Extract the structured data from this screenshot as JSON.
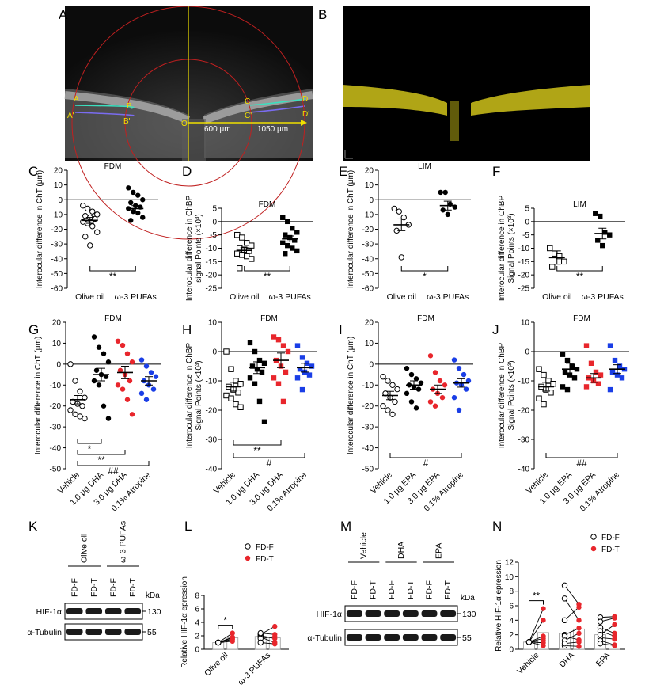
{
  "panel_labels": [
    "A",
    "B",
    "C",
    "D",
    "E",
    "F",
    "G",
    "H",
    "I",
    "J",
    "K",
    "L",
    "M",
    "N"
  ],
  "oct_a": {
    "labels": [
      "A",
      "A'",
      "B",
      "B'",
      "O",
      "C",
      "C'",
      "D",
      "D'"
    ],
    "dist1": "600 μm",
    "dist2": "1050 μm"
  },
  "blots": {
    "K": {
      "groups": [
        "Olive oil",
        "ω-3 PUFAs"
      ],
      "lanes": [
        "FD-F",
        "FD-T",
        "FD-F",
        "FD-T"
      ],
      "kda": "kDa",
      "rows": [
        {
          "name": "HIF-1α",
          "mw": "130"
        },
        {
          "name": "α-Tubulin",
          "mw": "55"
        }
      ]
    },
    "M": {
      "groups": [
        "Vehicle",
        "DHA",
        "EPA"
      ],
      "lanes": [
        "FD-F",
        "FD-T",
        "FD-F",
        "FD-T",
        "FD-F",
        "FD-T"
      ],
      "kda": "kDa",
      "rows": [
        {
          "name": "HIF-1α",
          "mw": "130"
        },
        {
          "name": "α-Tubulin",
          "mw": "55"
        }
      ]
    }
  },
  "chart_data": [
    {
      "id": "C",
      "type": "scatter",
      "title": "FDM",
      "ylabel": "Interocular difference in ChT (μm)",
      "ylim": [
        -60,
        20
      ],
      "yticks": [
        20,
        10,
        0,
        -10,
        -20,
        -30,
        -40,
        -50,
        -60
      ],
      "categories": [
        "Olive oil",
        "ω-3 PUFAs"
      ],
      "series": [
        {
          "name": "Olive oil",
          "marker": "open-circle",
          "color": "#000000",
          "mean": -14,
          "sem": 2,
          "values": [
            -4,
            -6,
            -8,
            -10,
            -11,
            -12,
            -13,
            -15,
            -16,
            -18,
            -22,
            -25,
            -31
          ]
        },
        {
          "name": "ω-3 PUFAs",
          "marker": "filled-circle",
          "color": "#000000",
          "mean": -6,
          "sem": 2,
          "values": [
            8,
            5,
            3,
            0,
            -2,
            -4,
            -5,
            -6,
            -8,
            -9,
            -12,
            -14
          ]
        }
      ],
      "brackets": [
        {
          "from": 0,
          "to": 1,
          "label": "**"
        }
      ]
    },
    {
      "id": "D",
      "type": "scatter",
      "title": "FDM",
      "ylabel": "Interocular difference in ChBP signal Points (×10³)",
      "ylim": [
        -25,
        5
      ],
      "yticks": [
        5,
        0,
        -5,
        -10,
        -15,
        -20,
        -25
      ],
      "categories": [
        "Olive oil",
        "ω-3 PUFAs"
      ],
      "series": [
        {
          "name": "Olive oil",
          "marker": "open-square",
          "color": "#000000",
          "mean": -10.8,
          "sem": 1,
          "values": [
            -5,
            -6,
            -8,
            -9,
            -10,
            -10.5,
            -11,
            -12,
            -12.5,
            -13,
            -14,
            -17.5
          ]
        },
        {
          "name": "ω-3 PUFAs",
          "marker": "filled-square",
          "color": "#000000",
          "mean": -6.5,
          "sem": 1.1,
          "values": [
            1.5,
            0,
            -2.5,
            -4,
            -5,
            -6,
            -7,
            -8,
            -9,
            -10,
            -11,
            -12
          ]
        }
      ],
      "brackets": [
        {
          "from": 0,
          "to": 1,
          "label": "**"
        }
      ]
    },
    {
      "id": "E",
      "type": "scatter",
      "title": "LIM",
      "ylabel": "Interocular difference in ChT (μm)",
      "ylim": [
        -60,
        20
      ],
      "yticks": [
        20,
        10,
        0,
        -10,
        -20,
        -30,
        -40,
        -50,
        -60
      ],
      "categories": [
        "Olive oil",
        "ω-3 PUFAs"
      ],
      "series": [
        {
          "name": "Olive oil",
          "marker": "open-circle",
          "color": "#000000",
          "mean": -17,
          "sem": 4,
          "values": [
            -6,
            -8,
            -12,
            -17,
            -21,
            -39
          ]
        },
        {
          "name": "ω-3 PUFAs",
          "marker": "filled-circle",
          "color": "#000000",
          "mean": -4,
          "sem": 3,
          "values": [
            5,
            5,
            -3,
            -5,
            -7,
            -10
          ]
        }
      ],
      "brackets": [
        {
          "from": 0,
          "to": 1,
          "label": "*"
        }
      ]
    },
    {
      "id": "F",
      "type": "scatter",
      "title": "LIM",
      "ylabel": "Interocular difference in ChBP Signal Points (×10³)",
      "ylim": [
        -25,
        5
      ],
      "yticks": [
        5,
        0,
        -5,
        -10,
        -15,
        -20,
        -25
      ],
      "categories": [
        "Olive oil",
        "ω-3 PUFAs"
      ],
      "series": [
        {
          "name": "Olive oil",
          "marker": "open-square",
          "color": "#000000",
          "mean": -13.5,
          "sem": 2.5,
          "values": [
            -10,
            -12,
            -13,
            -15,
            -17
          ]
        },
        {
          "name": "ω-3 PUFAs",
          "marker": "filled-square",
          "color": "#000000",
          "mean": -4.5,
          "sem": 2,
          "values": [
            3,
            2,
            -4,
            -5,
            -7,
            -9
          ]
        }
      ],
      "brackets": [
        {
          "from": 0,
          "to": 1,
          "label": "**"
        }
      ]
    },
    {
      "id": "G",
      "type": "scatter",
      "title": "FDM",
      "ylabel": "Interocular difference in ChT (μm)",
      "ylim": [
        -50,
        20
      ],
      "yticks": [
        20,
        10,
        0,
        -10,
        -20,
        -30,
        -40,
        -50
      ],
      "categories": [
        "Vehicle",
        "1.0 μg DHA",
        "3.0 μg DHA",
        "0.1% Atropine"
      ],
      "series": [
        {
          "name": "Vehicle",
          "marker": "open-circle",
          "color": "#000000",
          "mean": -17,
          "sem": 2,
          "values": [
            0,
            -8,
            -13,
            -16,
            -18,
            -19,
            -20,
            -22,
            -24,
            -25,
            -26
          ]
        },
        {
          "name": "1.0 μg DHA",
          "marker": "filled-circle",
          "color": "#000000",
          "mean": -5,
          "sem": 3,
          "values": [
            13,
            8,
            5,
            1,
            -3,
            -5,
            -6,
            -8,
            -10,
            -20,
            -26
          ]
        },
        {
          "name": "3.0 μg DHA",
          "marker": "filled-circle",
          "color": "#e8262c",
          "mean": -4,
          "sem": 3,
          "values": [
            11,
            9,
            5,
            1,
            -3,
            -5,
            -8,
            -10,
            -12,
            -17,
            -24
          ]
        },
        {
          "name": "0.1% Atropine",
          "marker": "filled-circle",
          "color": "#1a3ee6",
          "mean": -8,
          "sem": 2,
          "values": [
            2,
            -1,
            -4,
            -6,
            -8,
            -10,
            -12,
            -14,
            -17
          ]
        }
      ],
      "brackets": [
        {
          "from": 0,
          "to": 1,
          "label": "*"
        },
        {
          "from": 0,
          "to": 2,
          "label": "**"
        },
        {
          "from": 0,
          "to": 3,
          "label": "##"
        }
      ]
    },
    {
      "id": "H",
      "type": "scatter",
      "title": "FDM",
      "ylabel": "Interocular difference in ChBP Signal Points (×10³)",
      "ylim": [
        -40,
        10
      ],
      "yticks": [
        10,
        0,
        -10,
        -20,
        -30,
        -40
      ],
      "categories": [
        "Vehicle",
        "1.0 μg DHA",
        "3.0 μg DHA",
        "0.1% Atropine"
      ],
      "series": [
        {
          "name": "Vehicle",
          "marker": "open-square",
          "color": "#000000",
          "mean": -12,
          "sem": 1.5,
          "values": [
            0,
            -6,
            -10,
            -11,
            -12,
            -13,
            -14,
            -15,
            -16,
            -18,
            -19
          ]
        },
        {
          "name": "1.0 μg DHA",
          "marker": "filled-square",
          "color": "#000000",
          "mean": -5.5,
          "sem": 2,
          "values": [
            3,
            0,
            -3,
            -4,
            -5,
            -6,
            -7,
            -9,
            -11,
            -17,
            -24
          ]
        },
        {
          "name": "3.0 μg DHA",
          "marker": "filled-square",
          "color": "#e8262c",
          "mean": -3,
          "sem": 2.5,
          "values": [
            5,
            4,
            2,
            0,
            -3,
            -5,
            -7,
            -9,
            -11,
            -17
          ]
        },
        {
          "name": "0.1% Atropine",
          "marker": "filled-square",
          "color": "#1a3ee6",
          "mean": -5.5,
          "sem": 1.5,
          "values": [
            2,
            -2,
            -4,
            -5,
            -6,
            -7,
            -8,
            -9,
            -13
          ]
        }
      ],
      "brackets": [
        {
          "from": 0,
          "to": 2,
          "label": "**"
        },
        {
          "from": 0,
          "to": 3,
          "label": "#"
        }
      ]
    },
    {
      "id": "I",
      "type": "scatter",
      "title": "FDM",
      "ylabel": "Interocular difference in ChT (μm)",
      "ylim": [
        -50,
        20
      ],
      "yticks": [
        20,
        10,
        0,
        -10,
        -20,
        -30,
        -40,
        -50
      ],
      "categories": [
        "Vehicle",
        "1.0 μg EPA",
        "3.0 μg EPA",
        "0.1% Atropine"
      ],
      "series": [
        {
          "name": "Vehicle",
          "marker": "open-circle",
          "color": "#000000",
          "mean": -15,
          "sem": 2,
          "values": [
            -6,
            -8,
            -10,
            -12,
            -14,
            -16,
            -18,
            -20,
            -22,
            -24
          ]
        },
        {
          "name": "1.0 μg EPA",
          "marker": "filled-circle",
          "color": "#000000",
          "mean": -10,
          "sem": 2,
          "values": [
            -2,
            -5,
            -7,
            -9,
            -10,
            -11,
            -12,
            -14,
            -18,
            -21
          ]
        },
        {
          "name": "3.0 μg EPA",
          "marker": "filled-circle",
          "color": "#e8262c",
          "mean": -12,
          "sem": 2,
          "values": [
            4,
            -4,
            -8,
            -10,
            -12,
            -14,
            -16,
            -18,
            -20
          ]
        },
        {
          "name": "0.1% Atropine",
          "marker": "filled-circle",
          "color": "#1a3ee6",
          "mean": -9,
          "sem": 2,
          "values": [
            2,
            -2,
            -5,
            -8,
            -9,
            -10,
            -12,
            -16,
            -22
          ]
        }
      ],
      "brackets": [
        {
          "from": 0,
          "to": 3,
          "label": "#"
        }
      ]
    },
    {
      "id": "J",
      "type": "scatter",
      "title": "FDM",
      "ylabel": "Interocular difference in ChBP Signal Points (×10³)",
      "ylim": [
        -40,
        10
      ],
      "yticks": [
        10,
        0,
        -10,
        -20,
        -30,
        -40
      ],
      "categories": [
        "Vehicle",
        "1.0 μg EPA",
        "3.0 μg EPA",
        "0.1% Atropine"
      ],
      "series": [
        {
          "name": "Vehicle",
          "marker": "open-square",
          "color": "#000000",
          "mean": -12,
          "sem": 1.5,
          "values": [
            -6,
            -8,
            -10,
            -11,
            -12,
            -13,
            -14,
            -16,
            -18
          ]
        },
        {
          "name": "1.0 μg EPA",
          "marker": "filled-square",
          "color": "#000000",
          "mean": -6,
          "sem": 2,
          "values": [
            -1,
            -3,
            -5,
            -6,
            -7,
            -8,
            -9,
            -12,
            -13
          ]
        },
        {
          "name": "3.0 μg EPA",
          "marker": "filled-square",
          "color": "#e8262c",
          "mean": -9,
          "sem": 1.5,
          "values": [
            2,
            -4,
            -7,
            -8,
            -9,
            -10,
            -11,
            -12
          ]
        },
        {
          "name": "0.1% Atropine",
          "marker": "filled-square",
          "color": "#1a3ee6",
          "mean": -6,
          "sem": 1.5,
          "values": [
            2,
            -3,
            -5,
            -6,
            -7,
            -8,
            -9,
            -13
          ]
        }
      ],
      "brackets": [
        {
          "from": 0,
          "to": 3,
          "label": "##"
        }
      ]
    },
    {
      "id": "L",
      "type": "paired",
      "ylabel": "Relative HIF-1α epression",
      "ylim": [
        0,
        8
      ],
      "yticks": [
        0,
        2,
        4,
        6,
        8
      ],
      "categories": [
        "Olive oil",
        "ω-3 PUFAs"
      ],
      "legend": [
        {
          "label": "FD-F",
          "marker": "open-circle",
          "color": "#000000"
        },
        {
          "label": "FD-T",
          "marker": "filled-circle",
          "color": "#e8262c"
        }
      ],
      "groups": [
        {
          "name": "Olive oil",
          "bar_f": 1,
          "bar_t": 1.7,
          "pairs": [
            [
              1,
              1.5
            ],
            [
              1,
              1.8
            ],
            [
              1,
              2.4
            ],
            [
              1,
              1.2
            ],
            [
              1,
              1.7
            ]
          ]
        },
        {
          "name": "ω-3 PUFAs",
          "bar_f": 1.9,
          "bar_t": 1.7,
          "pairs": [
            [
              2.2,
              3.4
            ],
            [
              2.0,
              1.6
            ],
            [
              1.8,
              1.0
            ],
            [
              1.6,
              1.9
            ],
            [
              1.0,
              0.8
            ],
            [
              2.4,
              2.2
            ]
          ]
        }
      ],
      "brackets": [
        {
          "group": 0,
          "label": "*"
        }
      ]
    },
    {
      "id": "N",
      "type": "paired",
      "ylabel": "Relative HIF-1α epression",
      "ylim": [
        0,
        12
      ],
      "yticks": [
        0,
        2,
        4,
        6,
        8,
        10,
        12
      ],
      "categories": [
        "Vehicle",
        "DHA",
        "EPA"
      ],
      "legend": [
        {
          "label": "FD-F",
          "marker": "open-circle",
          "color": "#000000"
        },
        {
          "label": "FD-T",
          "marker": "filled-circle",
          "color": "#e8262c"
        }
      ],
      "groups": [
        {
          "name": "Vehicle",
          "bar_f": 1,
          "bar_t": 2.3,
          "pairs": [
            [
              1,
              5.6
            ],
            [
              1,
              4.0
            ],
            [
              1,
              1.5
            ],
            [
              1,
              1.2
            ],
            [
              1,
              0.5
            ],
            [
              1,
              0.9
            ],
            [
              1,
              1.8
            ]
          ]
        },
        {
          "name": "DHA",
          "bar_f": 2.2,
          "bar_t": 2.8,
          "pairs": [
            [
              8.8,
              6.2
            ],
            [
              7.0,
              4.0
            ],
            [
              4.0,
              5.8
            ],
            [
              2.0,
              2.9
            ],
            [
              1.8,
              1.3
            ],
            [
              1.2,
              2.2
            ],
            [
              0.5,
              0.4
            ],
            [
              0.8,
              1.0
            ]
          ]
        },
        {
          "name": "EPA",
          "bar_f": 2.0,
          "bar_t": 1.7,
          "pairs": [
            [
              4.4,
              4.5
            ],
            [
              3.8,
              4.3
            ],
            [
              3.0,
              2.2
            ],
            [
              2.5,
              1.8
            ],
            [
              1.6,
              1.4
            ],
            [
              1.2,
              0.6
            ],
            [
              0.8,
              0.5
            ],
            [
              2.0,
              3.4
            ]
          ]
        }
      ],
      "brackets": [
        {
          "group": 0,
          "label": "**"
        }
      ]
    }
  ]
}
